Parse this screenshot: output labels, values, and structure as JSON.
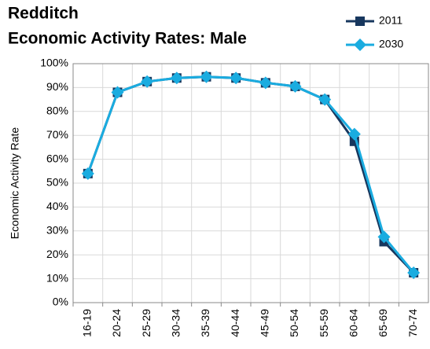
{
  "chart_data": {
    "type": "line",
    "title": "Redditch",
    "subtitle": "Economic Activity Rates: Male",
    "y_label": "Economic Activity Rate",
    "categories": [
      "16-19",
      "20-24",
      "25-29",
      "30-34",
      "35-39",
      "40-44",
      "45-49",
      "50-54",
      "55-59",
      "60-64",
      "65-69",
      "70-74"
    ],
    "series": [
      {
        "name": "2011",
        "color": "#17375e",
        "marker": "square",
        "values": [
          54,
          88,
          92.5,
          94,
          94.5,
          94,
          92,
          90.5,
          85,
          67.5,
          25.5,
          12.5
        ]
      },
      {
        "name": "2030",
        "color": "#1aace0",
        "marker": "diamond",
        "values": [
          54,
          88,
          92.5,
          94,
          94.5,
          94,
          92,
          90.5,
          85,
          70.5,
          27.5,
          12.5
        ]
      }
    ],
    "ylim": [
      0,
      100
    ],
    "yticks": [
      {
        "value": 0,
        "label": "0%"
      },
      {
        "value": 10,
        "label": "10%"
      },
      {
        "value": 20,
        "label": "20%"
      },
      {
        "value": 30,
        "label": "30%"
      },
      {
        "value": 40,
        "label": "40%"
      },
      {
        "value": 50,
        "label": "50%"
      },
      {
        "value": 60,
        "label": "60%"
      },
      {
        "value": 70,
        "label": "70%"
      },
      {
        "value": 80,
        "label": "80%"
      },
      {
        "value": 90,
        "label": "90%"
      },
      {
        "value": 100,
        "label": "100%"
      }
    ],
    "grid": true,
    "legend": "top-right"
  }
}
